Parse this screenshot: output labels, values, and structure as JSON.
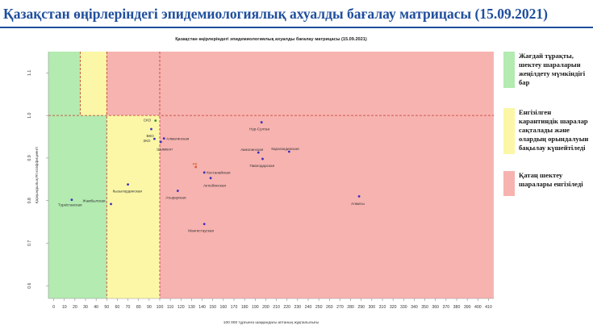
{
  "header": {
    "title": "Қазақстан өңірлеріндегі эпидемиологиялық ахуалды бағалау матрицасы  (15.09.2021)"
  },
  "chart_data": {
    "type": "scatter",
    "title": "Қазақстан өңірлеріндегі эпидемиологиялық ахуалды бағалау матрицасы (15.09.2021)",
    "xlabel": "100 000 тұрғынға шаққандағы аптаның жұқпалылығы",
    "ylabel": "Қарқындылық Rt коэффициенті",
    "xlim": [
      -5,
      415
    ],
    "ylim": [
      0.57,
      1.15
    ],
    "xticks": [
      0,
      10,
      20,
      30,
      40,
      50,
      60,
      70,
      80,
      90,
      100,
      110,
      120,
      130,
      140,
      150,
      160,
      170,
      180,
      190,
      200,
      210,
      220,
      230,
      240,
      250,
      260,
      270,
      280,
      290,
      300,
      310,
      320,
      330,
      340,
      350,
      360,
      370,
      380,
      390,
      400,
      410
    ],
    "yticks": [
      0.6,
      0.7,
      0.8,
      0.9,
      1.0,
      1.1
    ],
    "ytick_labels": [
      "0.6",
      "0.7",
      "0.8",
      "0.9",
      "1.0",
      "1.1"
    ],
    "grid": false,
    "zones": [
      {
        "zone": "green",
        "x": [
          -5,
          50
        ],
        "y": [
          0.57,
          1.15
        ]
      },
      {
        "zone": "green",
        "x": [
          50,
          100
        ],
        "y": [
          1.0,
          1.15
        ]
      },
      {
        "zone": "yellow",
        "x": [
          50,
          100
        ],
        "y": [
          0.57,
          1.0
        ]
      },
      {
        "zone": "yellow",
        "x": [
          25,
          50
        ],
        "y": [
          1.0,
          1.15
        ]
      },
      {
        "zone": "red",
        "x": [
          100,
          415
        ],
        "y": [
          0.57,
          1.15
        ]
      },
      {
        "zone": "red",
        "x": [
          50,
          100
        ],
        "y": [
          1.0,
          1.15
        ]
      }
    ],
    "threshold_lines": {
      "x": [
        50,
        100
      ],
      "y": [
        1.0
      ]
    },
    "points": [
      {
        "label": "Түркістанская",
        "x": 17,
        "y": 0.802,
        "color": "#3b2fbf"
      },
      {
        "label": "Жамбылская",
        "x": 54,
        "y": 0.792,
        "color": "#3b2fbf"
      },
      {
        "label": "Кызылординская",
        "x": 70,
        "y": 0.838,
        "color": "#3b2fbf"
      },
      {
        "label": "СКО",
        "x": 96,
        "y": 0.988,
        "color": "#2e8b3a"
      },
      {
        "label": "ВКО",
        "x": 92,
        "y": 0.968,
        "color": "#3b2fbf"
      },
      {
        "label": "ЗКО",
        "x": 95,
        "y": 0.945,
        "color": "#3b2fbf"
      },
      {
        "label": "Алматинская",
        "x": 104,
        "y": 0.946,
        "color": "#3b2fbf"
      },
      {
        "label": "Шымкент",
        "x": 101,
        "y": 0.938,
        "color": "#3b2fbf"
      },
      {
        "label": "РК",
        "x": 134,
        "y": 0.879,
        "color": "#e0563a"
      },
      {
        "label": "Костанайская",
        "x": 142,
        "y": 0.866,
        "color": "#3b2fbf"
      },
      {
        "label": "Актюбинская",
        "x": 148,
        "y": 0.853,
        "color": "#3b2fbf"
      },
      {
        "label": "Атырауская",
        "x": 117,
        "y": 0.823,
        "color": "#3b2fbf"
      },
      {
        "label": "Мангистауская",
        "x": 142,
        "y": 0.745,
        "color": "#3b2fbf"
      },
      {
        "label": "Нур-Султан",
        "x": 196,
        "y": 0.984,
        "color": "#3b2fbf"
      },
      {
        "label": "Акмолинская",
        "x": 193,
        "y": 0.913,
        "color": "#3b2fbf"
      },
      {
        "label": "Павлодарская",
        "x": 197,
        "y": 0.898,
        "color": "#3b2fbf"
      },
      {
        "label": "Карагандинская",
        "x": 222,
        "y": 0.915,
        "color": "#3b2fbf"
      },
      {
        "label": "Алматы",
        "x": 288,
        "y": 0.81,
        "color": "#3b2fbf"
      }
    ]
  },
  "legend": [
    {
      "color": "#b3ebb0",
      "text": "Жағдай тұрақты, шектеу шараларын жеңілдету мүмкіндігі бар"
    },
    {
      "color": "#fbf7a6",
      "text": "Енгізілген карантиндік шаралар сақталады және олардың орындалуын бақылау күшейтіледі"
    },
    {
      "color": "#f7b3b0",
      "text": "Қатаң шектеу шаралары енгізіледі"
    }
  ]
}
